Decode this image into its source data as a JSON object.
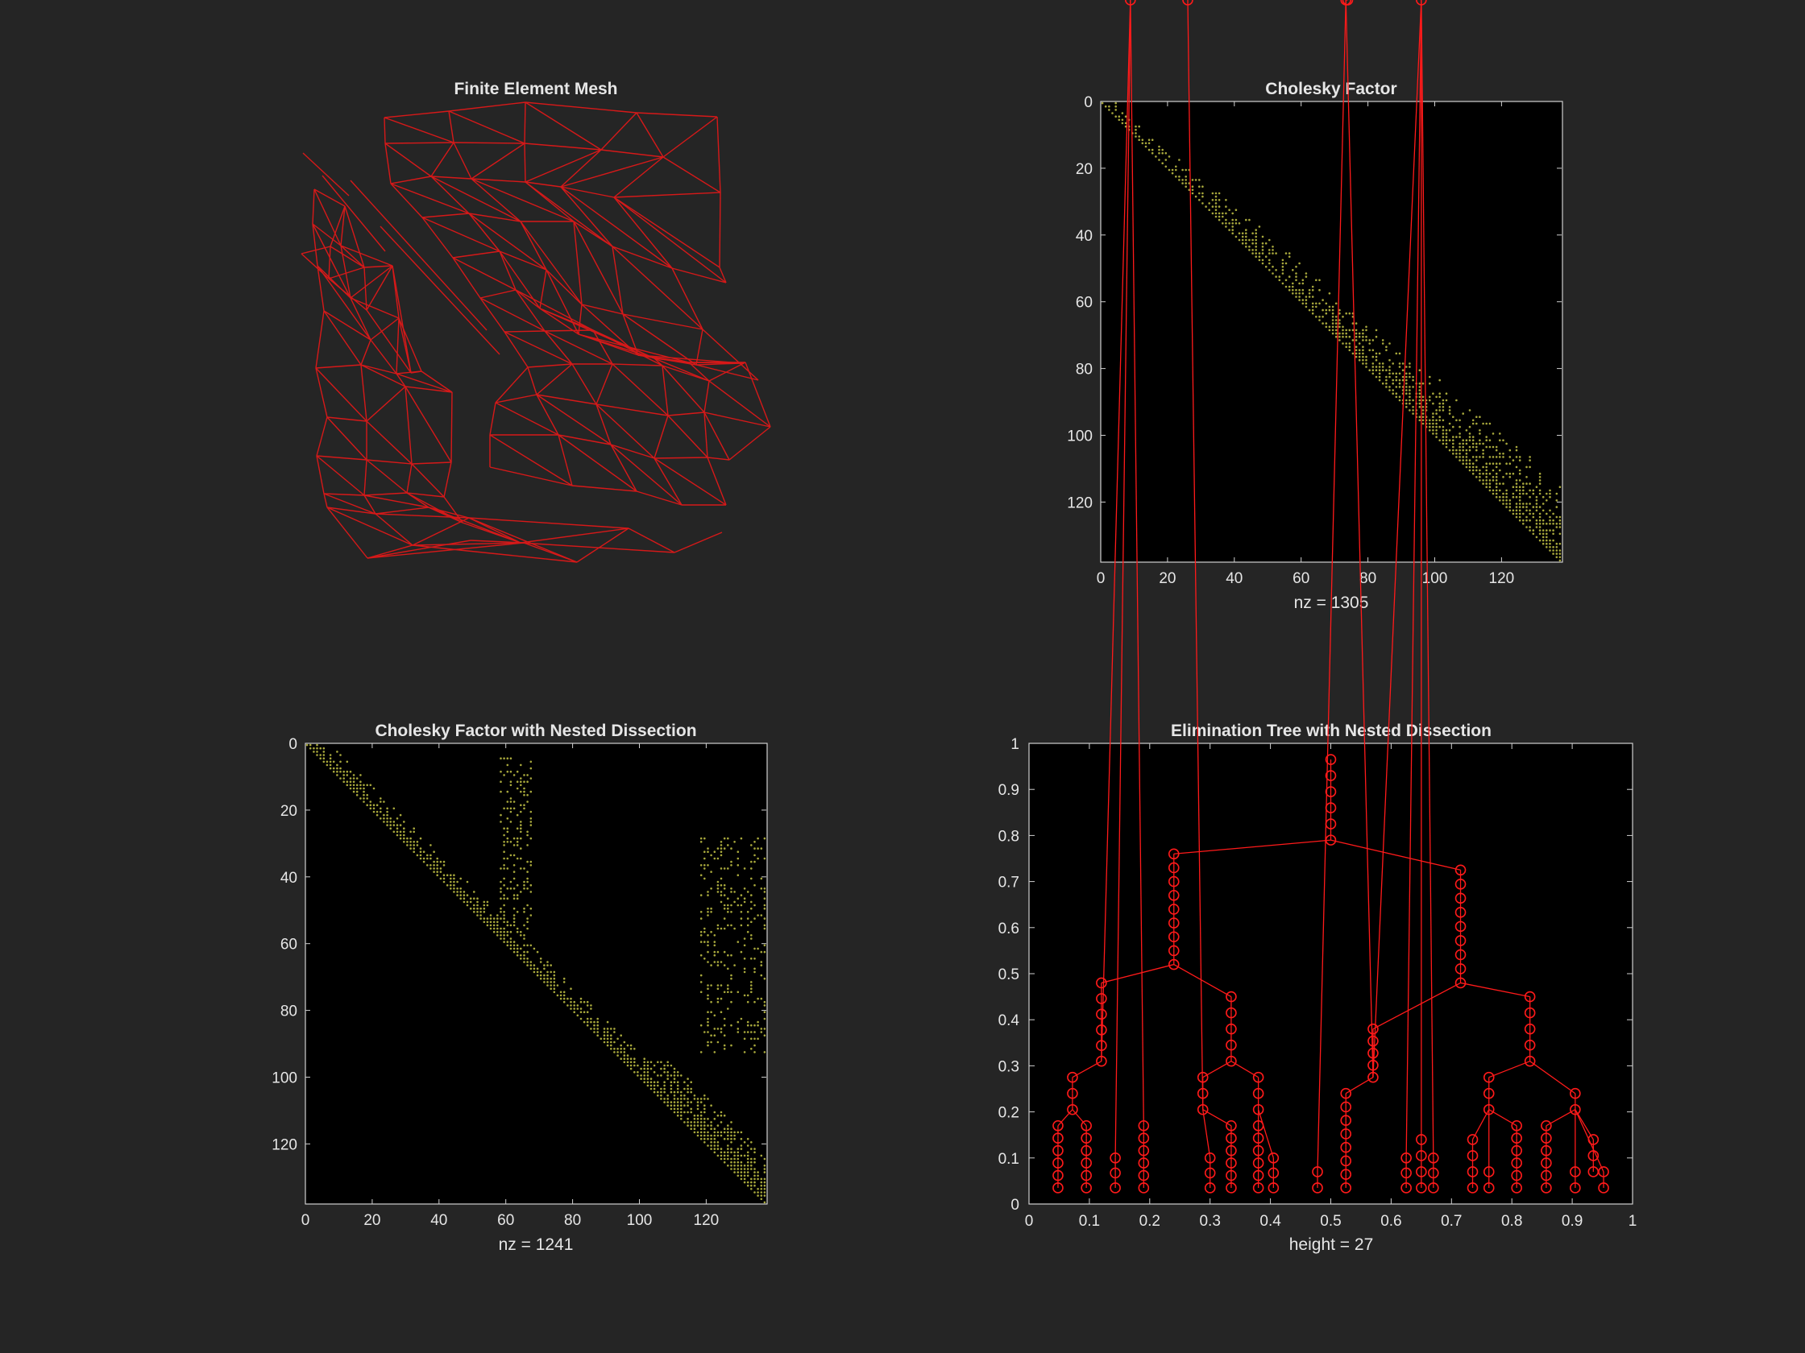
{
  "colors": {
    "figure_bg": "#252525",
    "axes_bg": "#000000",
    "axes_edge": "#d0d0d0",
    "text": "#e6e6e6",
    "mesh_line": "#d61919",
    "spy_marker": "#a8a83c",
    "tree": "#ff1a1a"
  },
  "chart_data": [
    {
      "type": "mesh",
      "title": "Finite Element Mesh",
      "axis_visible": false,
      "elements": "triangles"
    },
    {
      "type": "spy",
      "title": "Cholesky Factor",
      "xlabel": "nz = 1305",
      "matrix_size": 138,
      "nz": 1305,
      "pattern": "upper triangular, band widening toward bottom-right",
      "xlim": [
        0,
        138
      ],
      "ylim": [
        0,
        138
      ],
      "y_reversed": true,
      "xticks": [
        0,
        20,
        40,
        60,
        80,
        100,
        120
      ],
      "yticks": [
        0,
        20,
        40,
        60,
        80,
        100,
        120
      ]
    },
    {
      "type": "spy",
      "title": "Cholesky Factor with Nested Dissection",
      "xlabel": "nz = 1241",
      "matrix_size": 138,
      "nz": 1241,
      "pattern": "upper triangular, nested-dissection blocks in last columns",
      "xlim": [
        0,
        138
      ],
      "ylim": [
        0,
        138
      ],
      "y_reversed": true,
      "xticks": [
        0,
        20,
        40,
        60,
        80,
        100,
        120
      ],
      "yticks": [
        0,
        20,
        40,
        60,
        80,
        100,
        120
      ]
    },
    {
      "type": "tree",
      "title": "Elimination Tree with Nested Dissection",
      "xlabel": "height = 27",
      "height": 27,
      "xlim": [
        0,
        1
      ],
      "ylim": [
        0,
        1
      ],
      "xticks": [
        "0",
        "0.1",
        "0.2",
        "0.3",
        "0.4",
        "0.5",
        "0.6",
        "0.7",
        "0.8",
        "0.9",
        "1"
      ],
      "yticks": [
        "0",
        "0.1",
        "0.2",
        "0.3",
        "0.4",
        "0.5",
        "0.6",
        "0.7",
        "0.8",
        "0.9",
        "1"
      ]
    }
  ]
}
